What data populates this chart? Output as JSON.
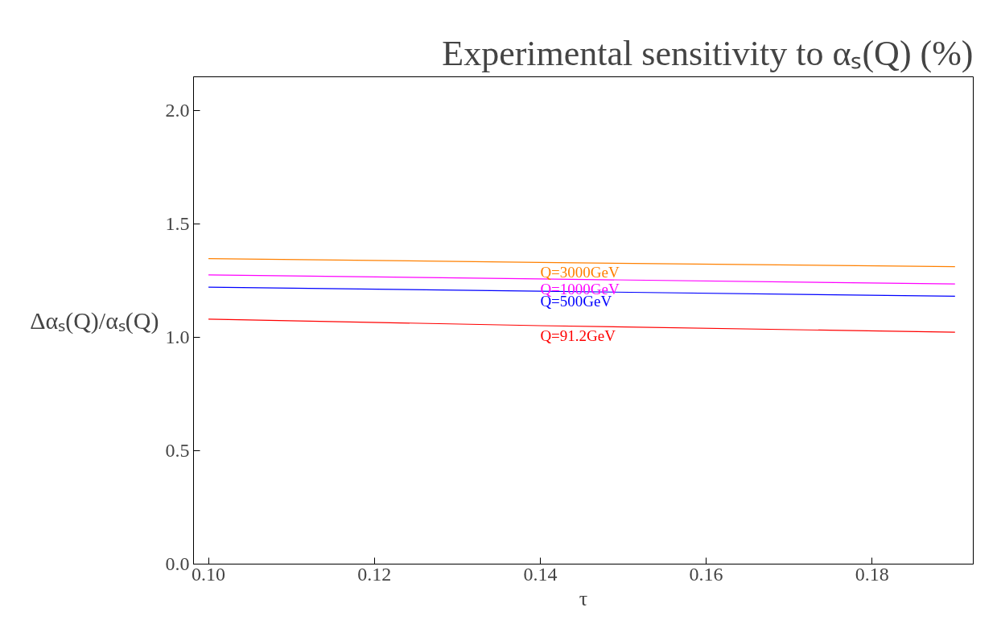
{
  "chart_data": {
    "type": "line",
    "title": "Experimental sensitivity to αₛ(Q) (%)",
    "xlabel": "τ",
    "ylabel": "Δαₛ(Q)/αₛ(Q)",
    "x": [
      0.1,
      0.14,
      0.19
    ],
    "series": [
      {
        "name": "Q=3000GeV",
        "color": "#ff8000",
        "values": [
          1.348,
          1.331,
          1.312
        ]
      },
      {
        "name": "Q=1000GeV",
        "color": "#ff00ff",
        "values": [
          1.276,
          1.258,
          1.236
        ]
      },
      {
        "name": "Q=500GeV",
        "color": "#0000ff",
        "values": [
          1.222,
          1.204,
          1.182
        ]
      },
      {
        "name": "Q=91.2GeV",
        "color": "#ff0000",
        "values": [
          1.081,
          1.052,
          1.023
        ]
      }
    ],
    "xlim": [
      0.0982,
      0.1922
    ],
    "ylim": [
      0,
      2.15
    ],
    "xticks": [
      {
        "value": 0.1,
        "label": "0.10"
      },
      0.12,
      0.14,
      0.16,
      0.18
    ],
    "yticks": [
      {
        "value": 0,
        "label": "0.0"
      },
      0.5,
      {
        "value": 1,
        "label": "1.0"
      },
      1.5,
      {
        "value": 2,
        "label": "2.0"
      }
    ],
    "grid": false,
    "legend": false
  }
}
